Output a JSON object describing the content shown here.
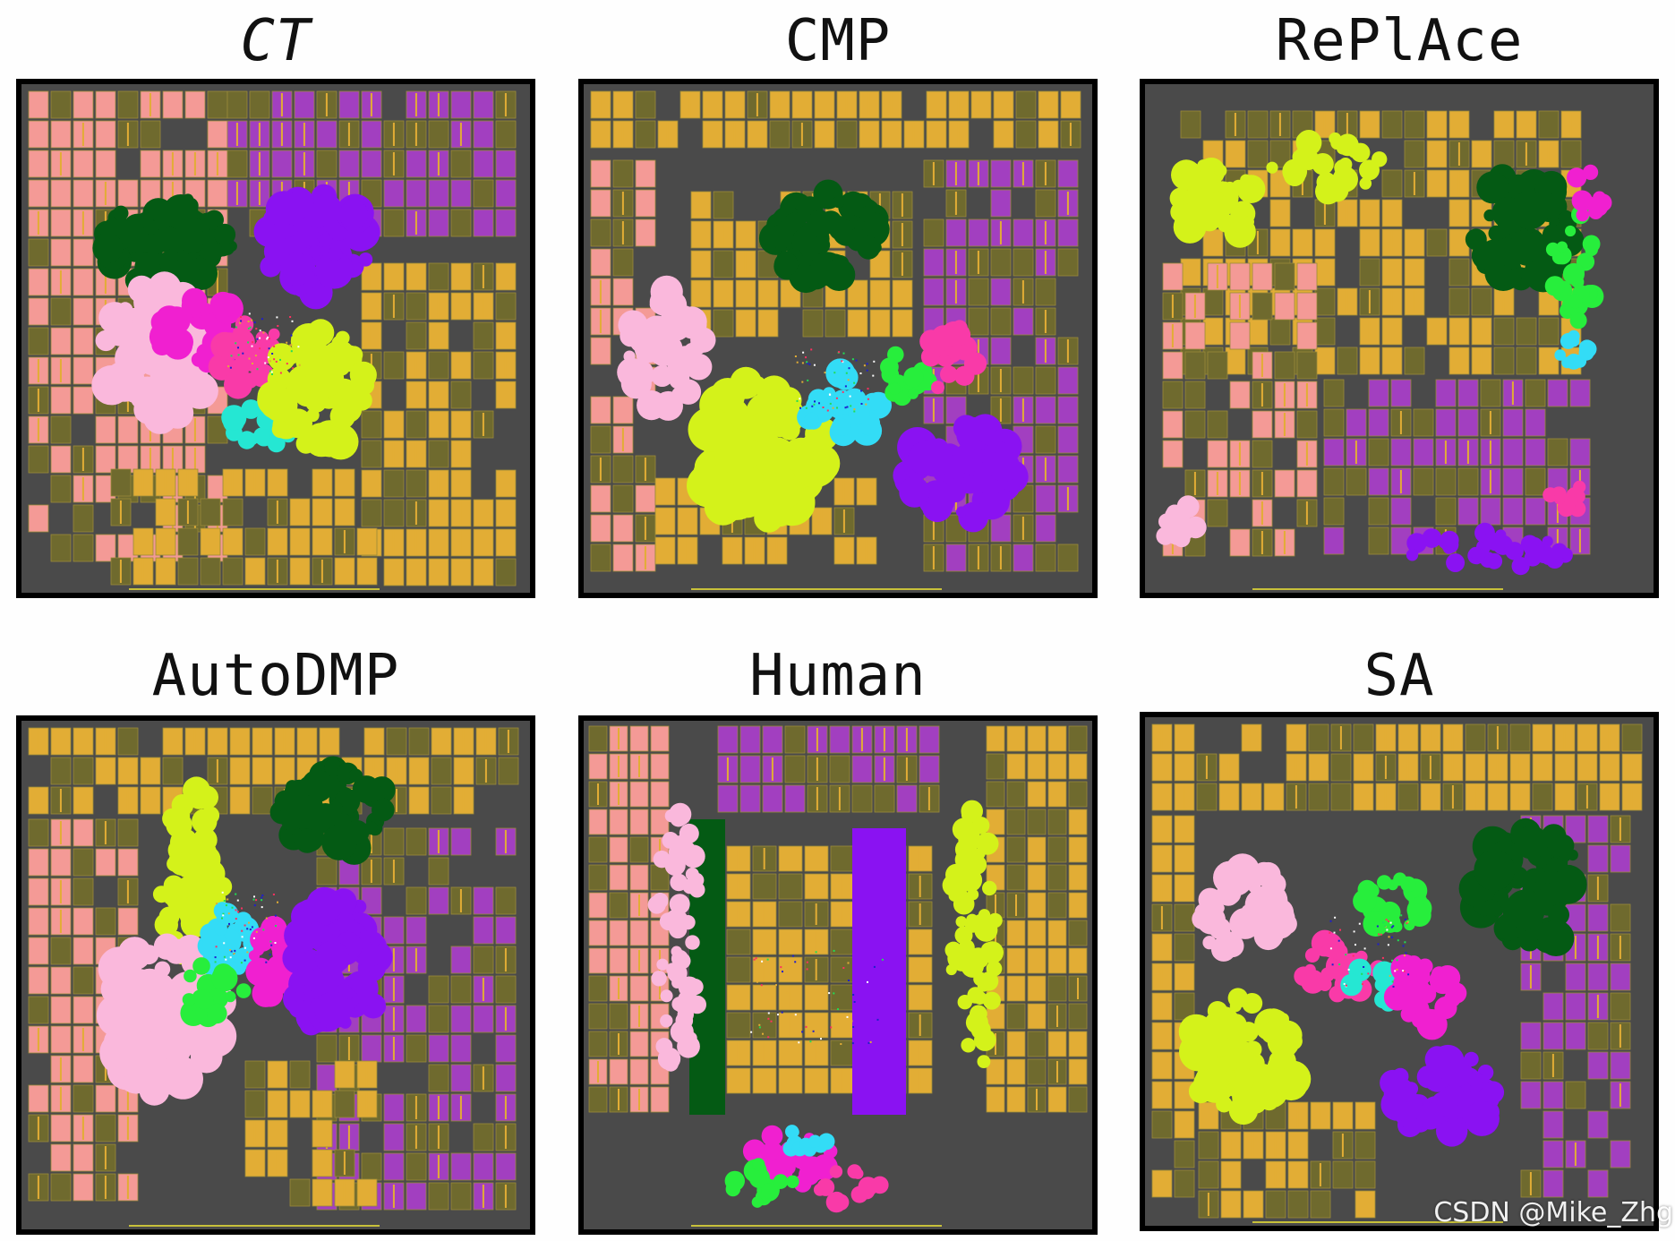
{
  "figure": {
    "panels": [
      {
        "title": "CT",
        "italic": true,
        "style": "ct"
      },
      {
        "title": "CMP",
        "italic": false,
        "style": "cmp"
      },
      {
        "title": "RePlAce",
        "italic": false,
        "style": "replace"
      },
      {
        "title": "AutoDMP",
        "italic": false,
        "style": "autodmp"
      },
      {
        "title": "Human",
        "italic": false,
        "style": "human"
      },
      {
        "title": "SA",
        "italic": false,
        "style": "sa"
      }
    ]
  },
  "watermark": "CSDN @Mike_Zhg",
  "palette": {
    "background": "#4a4a4a",
    "macro_gold": "#e2ad35",
    "macro_olive": "#6f6a2e",
    "macro_salmon": "#f49a96",
    "macro_purple": "#a23fc0",
    "cluster_dark_green": "#045a14",
    "cluster_violet": "#8a12f2",
    "cluster_light_pink": "#fab8dc",
    "cluster_magenta": "#f020d0",
    "cluster_hot_pink": "#f93aa8",
    "cluster_cyan": "#25e7d3",
    "cluster_sky": "#33dcf6",
    "cluster_lime": "#d4f21a",
    "cluster_green": "#27ee3c"
  }
}
